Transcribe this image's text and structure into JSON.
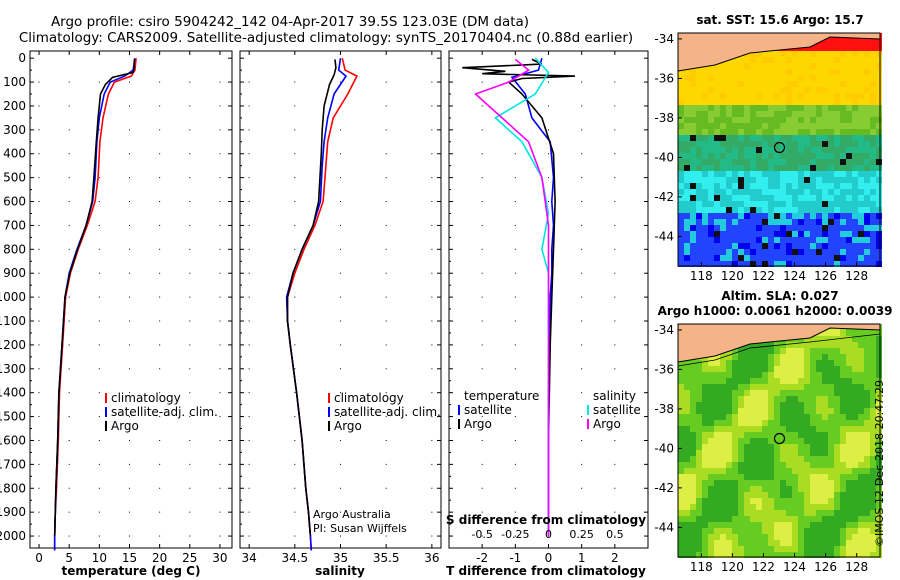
{
  "header": {
    "title_line1": "Argo profile: csiro 5904242_142 04-Apr-2017 39.5S 123.03E (DM data)",
    "title_line2": "Climatology: CARS2009. Satellite-adjusted climatology: synTS_20170404.nc (0.88d earlier)"
  },
  "colors": {
    "climatology": "#ff0000",
    "satellite": "#0000ff",
    "argo": "#000000",
    "satellite_s": "#00e5e5",
    "argo_s": "#ff00ff"
  },
  "depth_axis": {
    "ticks": [
      "0",
      "100",
      "200",
      "300",
      "400",
      "500",
      "600",
      "700",
      "800",
      "900",
      "1000",
      "1100",
      "1200",
      "1300",
      "1400",
      "1500",
      "1600",
      "1700",
      "1800",
      "1900",
      "2000"
    ]
  },
  "chart_data": [
    {
      "type": "line",
      "name": "temperature-panel",
      "xlabel": "temperature (deg C)",
      "xticks": [
        "0",
        "5",
        "10",
        "15",
        "20",
        "25",
        "30"
      ],
      "xlim": [
        -1.5,
        32
      ],
      "ylim": [
        2050,
        -30
      ],
      "legend": [
        "climatology",
        "satellite-adj. clim.",
        "Argo"
      ],
      "series": [
        {
          "name": "climatology",
          "color": "red",
          "x": [
            16.1,
            15.9,
            15.3,
            12.5,
            11.5,
            10.6,
            10.1,
            9.8,
            9.3,
            8.0,
            6.5,
            5.2,
            4.4,
            3.9,
            3.4,
            3.2,
            2.9,
            2.7,
            2.6,
            2.6
          ],
          "y": [
            0,
            50,
            75,
            100,
            150,
            250,
            350,
            500,
            600,
            700,
            800,
            900,
            1000,
            1200,
            1400,
            1600,
            1800,
            1900,
            2000,
            2060
          ]
        },
        {
          "name": "satellite",
          "color": "blue",
          "x": [
            15.9,
            15.6,
            14.2,
            11.8,
            10.8,
            10.0,
            9.6,
            9.3,
            8.9,
            7.8,
            6.3,
            5.0,
            4.3,
            3.8,
            3.3,
            3.1,
            2.8,
            2.7,
            2.6,
            2.6
          ],
          "y": [
            0,
            50,
            75,
            100,
            150,
            250,
            350,
            500,
            600,
            700,
            800,
            900,
            1000,
            1200,
            1400,
            1600,
            1800,
            1900,
            2000,
            2060
          ]
        },
        {
          "name": "Argo",
          "color": "black",
          "x": [
            15.8,
            15.8,
            15.6,
            12.2,
            11.6,
            11.0,
            10.2,
            9.8,
            9.5,
            9.1,
            8.8,
            7.8,
            6.4,
            5.1,
            4.3,
            3.8,
            3.3,
            3.1,
            2.8,
            2.6
          ],
          "y": [
            5,
            40,
            60,
            80,
            95,
            110,
            150,
            250,
            350,
            500,
            600,
            700,
            800,
            900,
            1000,
            1200,
            1400,
            1600,
            1800,
            2000
          ]
        }
      ]
    },
    {
      "type": "line",
      "name": "salinity-panel",
      "xlabel": "salinity",
      "xticks": [
        "34",
        "34.5",
        "35",
        "35.5",
        "36"
      ],
      "xlim": [
        33.9,
        36.1
      ],
      "ylim": [
        2050,
        -30
      ],
      "legend": [
        "climatology",
        "satellite-adj. clim.",
        "Argo"
      ],
      "annotation": [
        "Argo Australia",
        "PI: Susan Wijffels"
      ],
      "series": [
        {
          "name": "climatology",
          "color": "red",
          "x": [
            35.02,
            35.05,
            35.18,
            35.08,
            34.92,
            34.86,
            34.84,
            34.81,
            34.72,
            34.6,
            34.5,
            34.42,
            34.42,
            34.45,
            34.52,
            34.58,
            34.62,
            34.65,
            34.67,
            34.68
          ],
          "y": [
            0,
            50,
            75,
            150,
            250,
            350,
            450,
            600,
            700,
            800,
            900,
            1000,
            1100,
            1200,
            1400,
            1600,
            1800,
            1900,
            2000,
            2060
          ]
        },
        {
          "name": "satellite",
          "color": "blue",
          "x": [
            35.0,
            34.98,
            35.06,
            34.93,
            34.86,
            34.82,
            34.8,
            34.78,
            34.7,
            34.58,
            34.48,
            34.41,
            34.42,
            34.45,
            34.52,
            34.58,
            34.62,
            34.65,
            34.67,
            34.68
          ],
          "y": [
            0,
            50,
            75,
            150,
            250,
            350,
            450,
            600,
            700,
            800,
            900,
            1000,
            1100,
            1200,
            1400,
            1600,
            1800,
            1900,
            2000,
            2060
          ]
        },
        {
          "name": "Argo",
          "color": "black",
          "x": [
            34.94,
            34.95,
            34.93,
            34.88,
            34.82,
            34.8,
            34.79,
            34.76,
            34.7,
            34.58,
            34.48,
            34.42,
            34.42,
            34.45,
            34.52,
            34.58,
            34.62,
            34.65,
            34.67
          ],
          "y": [
            5,
            40,
            70,
            110,
            200,
            300,
            400,
            600,
            700,
            800,
            900,
            1000,
            1100,
            1200,
            1400,
            1600,
            1800,
            1900,
            2000
          ]
        }
      ]
    },
    {
      "type": "line",
      "name": "difference-panel",
      "xlabel": "T difference from climatology",
      "xlabel2": "S difference from climatology",
      "xticks": [
        "-2",
        "-1",
        "0",
        "1",
        "2"
      ],
      "xticks2": [
        "-0.5",
        "-0.25",
        "0",
        "0.25",
        "0.5"
      ],
      "xlim": [
        -3,
        3
      ],
      "ylim": [
        2050,
        -30
      ],
      "legend_t": [
        "temperature",
        "satellite",
        "Argo"
      ],
      "legend_s": [
        "salinity",
        "satellite",
        "Argo"
      ],
      "series": [
        {
          "name": "T satellite",
          "color": "blue",
          "x": [
            -0.2,
            -0.3,
            -1.1,
            -0.7,
            -0.5,
            0.05,
            0.15,
            0.1,
            0.15,
            0.1,
            0.1,
            0.05,
            0.02,
            0.0,
            0.0,
            0.0
          ],
          "y": [
            0,
            50,
            80,
            150,
            250,
            350,
            500,
            600,
            700,
            800,
            900,
            1000,
            1200,
            1400,
            1600,
            2000
          ]
        },
        {
          "name": "T Argo",
          "color": "black",
          "x": [
            -0.5,
            -0.2,
            -2.6,
            -1.3,
            -2.0,
            0.8,
            -0.8,
            -1.2,
            -0.8,
            -0.2,
            0.15,
            0.2,
            0.15,
            0.1,
            0.05,
            0.0,
            0.0
          ],
          "y": [
            5,
            25,
            40,
            55,
            65,
            75,
            85,
            100,
            150,
            250,
            400,
            600,
            800,
            1000,
            1200,
            1600,
            2000
          ]
        },
        {
          "name": "S satellite",
          "color": "cyan",
          "x": [
            -0.1,
            0.0,
            -0.1,
            -0.4,
            -0.2,
            -0.05,
            0.0,
            -0.05,
            0.0,
            0.0,
            0.0,
            0.0
          ],
          "y": [
            0,
            60,
            150,
            250,
            350,
            500,
            650,
            800,
            900,
            1000,
            1200,
            2000
          ]
        },
        {
          "name": "S Argo",
          "color": "magenta",
          "x": [
            -0.25,
            -0.15,
            -0.3,
            -0.55,
            -0.35,
            -0.15,
            -0.05,
            0.0,
            0.0,
            0.0
          ],
          "y": [
            5,
            50,
            100,
            150,
            250,
            350,
            500,
            700,
            1000,
            2000
          ]
        }
      ]
    },
    {
      "type": "heatmap",
      "name": "sst-map",
      "title": "sat. SST: 15.6 Argo: 15.7",
      "xticks": [
        "118",
        "120",
        "122",
        "124",
        "126",
        "128"
      ],
      "yticks": [
        "-34",
        "-36",
        "-38",
        "-40",
        "-42",
        "-44"
      ],
      "xlim": [
        116.5,
        129.5
      ],
      "ylim": [
        -45.5,
        -33.7
      ],
      "marker": {
        "lon": 123.03,
        "lat": -39.5
      }
    },
    {
      "type": "heatmap",
      "name": "sla-map",
      "title": "Altim. SLA: 0.027",
      "subtitle": "Argo h1000: 0.0061 h2000: 0.0039",
      "xticks": [
        "118",
        "120",
        "122",
        "124",
        "126",
        "128"
      ],
      "yticks": [
        "-34",
        "-36",
        "-38",
        "-40",
        "-42",
        "-44"
      ],
      "xlim": [
        116.5,
        129.5
      ],
      "ylim": [
        -45.5,
        -33.7
      ],
      "marker": {
        "lon": 123.03,
        "lat": -39.5
      }
    }
  ],
  "stamp": "©IMOS 12-Dec-2018 20:47:29"
}
